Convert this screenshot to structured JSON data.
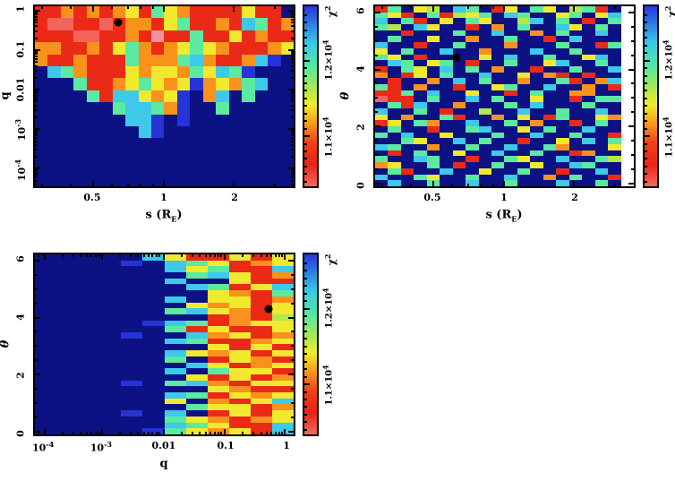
{
  "figure": {
    "background": "#ffffff",
    "description": "Three chi-squared heatmap panels from a binary microlensing grid search"
  },
  "palette": {
    "B": "#0c1284",
    "b": "#2633d8",
    "c": "#3cc9ea",
    "g": "#5ce9a0",
    "l": "#b2e84a",
    "y": "#f1e92e",
    "o": "#f8921c",
    "r": "#ea2a16",
    "s": "#f4645c",
    "p": "#f2909e",
    "w": "#ffffff"
  },
  "palette_chi2_estimate": {
    "B": "> 12500 (off scale)",
    "b": "12400",
    "c": "12150",
    "g": "11900",
    "l": "11650",
    "y": "11500",
    "o": "11250",
    "r": "11000",
    "s": "10800",
    "p": "10700",
    "w": "no data"
  },
  "colorbar": {
    "title": {
      "text": "χ",
      "sup": "2"
    },
    "range_estimate": [
      10500,
      12500
    ],
    "majors": [
      {
        "pct": 30.2,
        "label": "1.2×10^4"
      },
      {
        "pct": 72.2,
        "label": "1.1×10^4"
      }
    ],
    "minors_pct": [
      5.0,
      9.2,
      13.4,
      17.6,
      21.8,
      26.0,
      34.4,
      38.6,
      42.8,
      47.0,
      51.2,
      55.4,
      59.6,
      63.8,
      68.0,
      76.4,
      80.6,
      84.8,
      89.0,
      93.2,
      97.4
    ],
    "gradient": [
      [
        0,
        "#2536e0"
      ],
      [
        20,
        "#35c8e8"
      ],
      [
        34,
        "#55e9a0"
      ],
      [
        46,
        "#b0e84a"
      ],
      [
        55,
        "#f2ea2c"
      ],
      [
        66,
        "#f8921a"
      ],
      [
        76,
        "#f04018"
      ],
      [
        88,
        "#e92417"
      ],
      [
        100,
        "#f46a60"
      ]
    ]
  },
  "chart_data": [
    {
      "type": "heatmap",
      "name": "q vs s",
      "xlabel": {
        "text": "s (R",
        "sub": "E",
        "post": ")"
      },
      "ylabel": {
        "text": "q",
        "italic": false
      },
      "x_axis": {
        "scale": "log",
        "range": [
          0.28,
          3.6
        ]
      },
      "y_axis": {
        "scale": "log",
        "range": [
          4e-05,
          1.3
        ]
      },
      "x_ticks": {
        "majors": [
          {
            "pct": 22.5,
            "label": "0.5"
          },
          {
            "pct": 49.8,
            "label": "1"
          },
          {
            "pct": 76.8,
            "label": "2"
          }
        ],
        "minors_pct": [
          2.7,
          14.0,
          29.8,
          35.9,
          41.0,
          45.7,
          92.8
        ]
      },
      "y_ticks": {
        "majors": [
          {
            "pct": 2.4,
            "label": "1"
          },
          {
            "pct": 24.4,
            "label": "0.1"
          },
          {
            "pct": 46.3,
            "label": "0.01"
          },
          {
            "pct": 68.3,
            "label": "10^-3"
          },
          {
            "pct": 90.2,
            "label": "10^-4"
          }
        ],
        "minors_pct": [
          3.4,
          4.5,
          5.8,
          7.3,
          9.0,
          11.1,
          13.9,
          17.7,
          25.4,
          26.5,
          27.8,
          29.3,
          31.0,
          33.1,
          35.9,
          39.7,
          47.3,
          48.4,
          49.7,
          51.2,
          52.9,
          55.0,
          57.8,
          61.6,
          69.3,
          70.4,
          71.7,
          73.2,
          74.9,
          77.0,
          79.8,
          83.6,
          91.2,
          92.3,
          93.6,
          95.1,
          96.8,
          98.9
        ]
      },
      "marker": {
        "x_pct": 32.1,
        "y_pct": 8.8,
        "s": 0.7,
        "q": 0.5
      },
      "grid": {
        "cols": 20,
        "rows": 15,
        "rows_colors": [
          "rrororoyrgyorrrryrrB",
          "rssrrsroorygrrorcgro",
          "rrrssrrorprrgrryrorr",
          "oorrorygoroygyorrroy",
          "orrorrrgooogcorrocbB",
          "BcgorrryoyyogycgbBBB",
          "BBBgrroygyoyboyogcBB",
          "BBBBgrccyoybBocBgBBB",
          "BBBBBBgccgobBBgBBBBB",
          "BBBBBBBccbBbBBBBBBBB",
          "BBBBBBBBcbBBBBBBBBBB",
          "BBBBBBBBBBBBBBBBBBBB",
          "BBBBBBBBBBBBBBBBBBBB",
          "BBBBBBBBBBBBBBBBBBBB",
          "BBBBBBBBBBBBBBBBBBBB"
        ]
      }
    },
    {
      "type": "heatmap",
      "name": "theta vs s",
      "xlabel": {
        "text": "s (R",
        "sub": "E",
        "post": ")"
      },
      "ylabel": {
        "text": "θ",
        "italic": true
      },
      "x_axis": {
        "scale": "log",
        "range": [
          0.28,
          3.6
        ]
      },
      "y_axis": {
        "scale": "linear",
        "range": [
          0,
          6.3
        ]
      },
      "x_ticks": {
        "majors": [
          {
            "pct": 22.5,
            "label": "0.5"
          },
          {
            "pct": 49.8,
            "label": "1"
          },
          {
            "pct": 76.8,
            "label": "2"
          }
        ],
        "minors_pct": [
          2.7,
          14.0,
          29.8,
          35.9,
          41.0,
          45.7,
          92.8
        ]
      },
      "y_ticks": {
        "majors": [
          {
            "pct": 3.4,
            "label": "6"
          },
          {
            "pct": 35.1,
            "label": "4"
          },
          {
            "pct": 66.8,
            "label": "2"
          },
          {
            "pct": 98.5,
            "label": "0"
          }
        ],
        "minors_pct": [
          11.3,
          19.3,
          27.2,
          43.0,
          50.9,
          58.9,
          74.7,
          82.6,
          90.6
        ]
      },
      "marker": {
        "x_pct": 31.4,
        "y_pct": 28.3,
        "s": 0.7,
        "theta": 4.3
      },
      "grid": {
        "cols": 20,
        "rows": 30,
        "rows_colors": [
          "rgBylBcgBryBgyBlgrBw",
          "gyrBgrlygBcgBBygBycw",
          "cBgrByBgyBBlcBgBrBgw",
          "glBcyBBrBoBgBBcyBgBw",
          "BBrBBBgBBcBBoBgBBcBw",
          "BgBByBBoBBgBBrBcBBBw",
          "cBBrBBgBBBoBBBgBBrgw",
          "yBgBBcBBoBBBcBBgBBBw",
          "gyBrBBBByBcBBgBBycBw",
          "BcgBygBrBBgBBycBBgBw",
          "rBgyBcBgBoBBrBBgBBcw",
          "oBryBgBBcBByBorBrBBw",
          "BrBBoBcBgBBoBBgrBocw",
          "grBoBBrBBygBBcBBoBrw",
          "rrgBcBByBBrBgBBooBBw",
          "srrBgBBcBgBByBBrBggw",
          "BgrcBBoBBBgBcBBBgBBw",
          "cBBgBrBBlBBcBBgBBcBw",
          "yBoBBgrBBoByBrgBByow",
          "ryBgoBBcBBgBoBBrBgBw",
          "BgBBrBBgcBByBgBBcBBw",
          "gBcBByBBBgBBcBBgBBrw",
          "BBgyBBcBgBBrBByBcBgw",
          "cgBBoBBgBBcBBgoBBByw",
          "BrBgBByBBcBBgBBroBBw",
          "gBBcgBBrBBgyBBcBBglw",
          "oyBBgBrBBgBByBBcgBBw",
          "BgrBBcBByBBgBBrBBcBw",
          "cBBgyBBgBBcBBoBgBBrw",
          "BcBBgBBcBBgBBBcBBgBw"
        ]
      }
    },
    {
      "type": "heatmap",
      "name": "theta vs q",
      "xlabel": {
        "text": "q"
      },
      "ylabel": {
        "text": "θ",
        "italic": true
      },
      "x_axis": {
        "scale": "log",
        "range": [
          7e-05,
          1.4
        ]
      },
      "y_axis": {
        "scale": "linear",
        "range": [
          0,
          6.3
        ]
      },
      "x_ticks": {
        "majors": [
          {
            "pct": 3.8,
            "label": "10^-4"
          },
          {
            "pct": 25.9,
            "label": "10^-3"
          },
          {
            "pct": 49.8,
            "label": "0.01"
          },
          {
            "pct": 73.4,
            "label": "0.1"
          },
          {
            "pct": 96.6,
            "label": "1"
          }
        ],
        "minors_pct": [
          1.3,
          10.8,
          14.9,
          17.8,
          20.0,
          21.9,
          23.4,
          24.8,
          32.9,
          37.0,
          39.9,
          42.1,
          44.0,
          45.5,
          46.9,
          48.0,
          56.8,
          60.9,
          63.8,
          66.0,
          67.9,
          69.4,
          70.8,
          71.9,
          80.4,
          84.5,
          87.4,
          89.6,
          91.5,
          93.0,
          94.4,
          95.5
        ]
      },
      "y_ticks": {
        "majors": [
          {
            "pct": 3.4,
            "label": "6"
          },
          {
            "pct": 35.1,
            "label": "4"
          },
          {
            "pct": 66.8,
            "label": "2"
          },
          {
            "pct": 98.5,
            "label": "0"
          }
        ],
        "minors_pct": [
          11.3,
          19.3,
          27.2,
          43.0,
          50.9,
          58.9,
          74.7,
          82.6,
          90.6
        ]
      },
      "marker": {
        "x_pct": 90.4,
        "y_pct": 30.2,
        "q": 0.5,
        "theta": 4.3
      },
      "grid": {
        "cols": 12,
        "rows": 30,
        "rows_colors": [
          "BBBBBcyrryry",
          "BBBBbBcgyroy",
          "BBBBBBcygrrc",
          "BBBBBBBgcyro",
          "BBBBBBcBByrr",
          "BBBBBBBcgryc",
          "BBBBBBBByorg",
          "BBBBBBcByyro",
          "BBBBBBByoyry",
          "BBBBBBgcyory",
          "BBBBBBBBrorl",
          "BBBBBbcgroyy",
          "BBBBBBgryrry",
          "BBBBbBBcoyro",
          "BBBBBBcgrroy",
          "BBBBBBBByryr",
          "BBBBBBcyoyry",
          "BBBBBBgBryor",
          "BBBBBBBcyroy",
          "BBBBBBcBgyyr",
          "BBBBBBByryro",
          "BBBBbBgcoryy",
          "BBBBBBBByorr",
          "BBBBBBcgryoy",
          "BBBBBByBoryc",
          "BBBBBBBgyyro",
          "BBBBbBcBryry",
          "BBBBBBgyoroy",
          "BBBBBBcgyrrc",
          "BBBBBbgyoyrc"
        ]
      }
    }
  ]
}
